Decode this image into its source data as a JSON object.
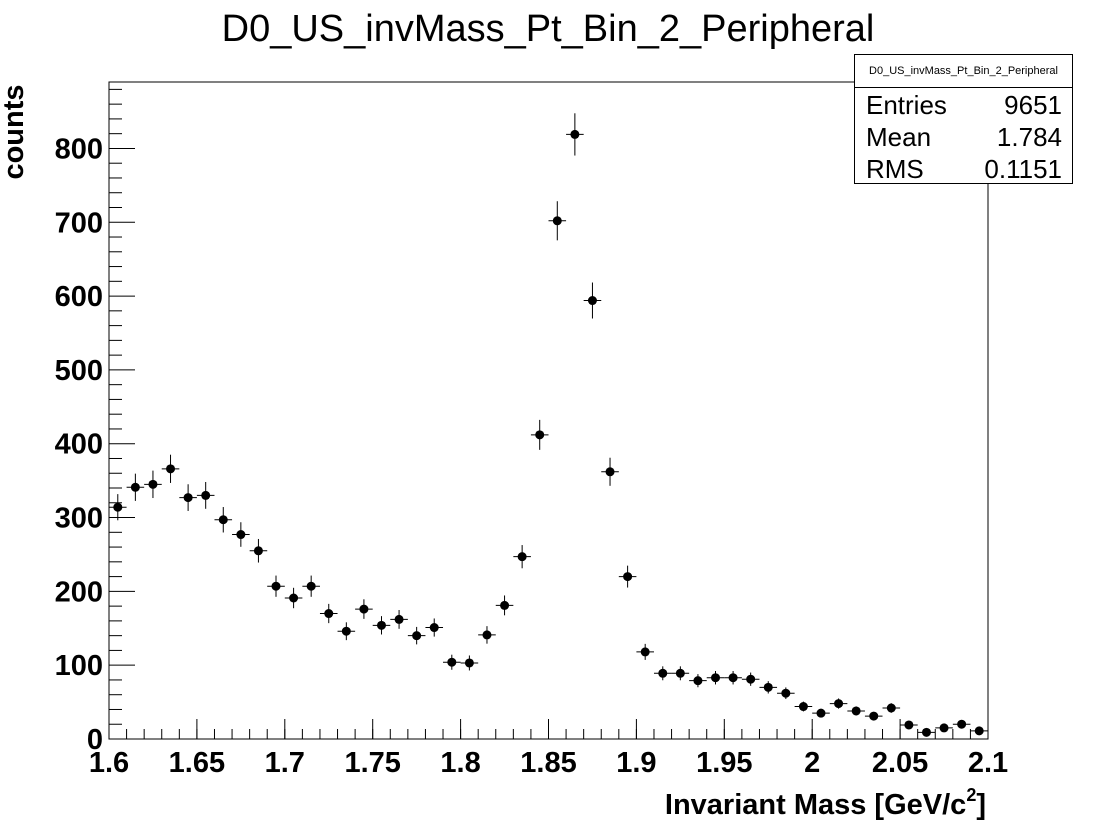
{
  "chart_data": {
    "type": "scatter",
    "title": "D0_US_invMass_Pt_Bin_2_Peripheral",
    "xlabel": "Invariant Mass [GeV/c",
    "xlabel_superscript": "2",
    "xlabel_suffix": "]",
    "ylabel": "counts",
    "xlim": [
      1.6,
      2.1
    ],
    "ylim": [
      0,
      890
    ],
    "x_ticks": [
      "1.6",
      "1.65",
      "1.7",
      "1.75",
      "1.8",
      "1.85",
      "1.9",
      "1.95",
      "2",
      "2.05",
      "2.1"
    ],
    "y_ticks": [
      "0",
      "100",
      "200",
      "300",
      "400",
      "500",
      "600",
      "700",
      "800"
    ],
    "bin_width": 0.01,
    "x": [
      1.605,
      1.615,
      1.625,
      1.635,
      1.645,
      1.655,
      1.665,
      1.675,
      1.685,
      1.695,
      1.705,
      1.715,
      1.725,
      1.735,
      1.745,
      1.755,
      1.765,
      1.775,
      1.785,
      1.795,
      1.805,
      1.815,
      1.825,
      1.835,
      1.845,
      1.855,
      1.865,
      1.875,
      1.885,
      1.895,
      1.905,
      1.915,
      1.925,
      1.935,
      1.945,
      1.955,
      1.965,
      1.975,
      1.985,
      1.995,
      2.005,
      2.015,
      2.025,
      2.035,
      2.045,
      2.055,
      2.065,
      2.075,
      2.085,
      2.095
    ],
    "y": [
      314,
      341,
      345,
      366,
      327,
      330,
      297,
      277,
      255,
      207,
      191,
      207,
      170,
      146,
      176,
      154,
      162,
      140,
      151,
      104,
      103,
      141,
      181,
      247,
      412,
      702,
      819,
      594,
      362,
      220,
      118,
      89,
      89,
      79,
      83,
      83,
      81,
      70,
      62,
      44,
      35,
      48,
      38,
      31,
      42,
      19,
      9,
      15,
      20,
      11
    ],
    "grid": false,
    "marker_color": "#000000",
    "stats": {
      "title": "D0_US_invMass_Pt_Bin_2_Peripheral",
      "entries_label": "Entries",
      "entries_value": "9651",
      "mean_label": "Mean",
      "mean_value": "1.784",
      "rms_label": "RMS",
      "rms_value": "0.1151"
    }
  }
}
